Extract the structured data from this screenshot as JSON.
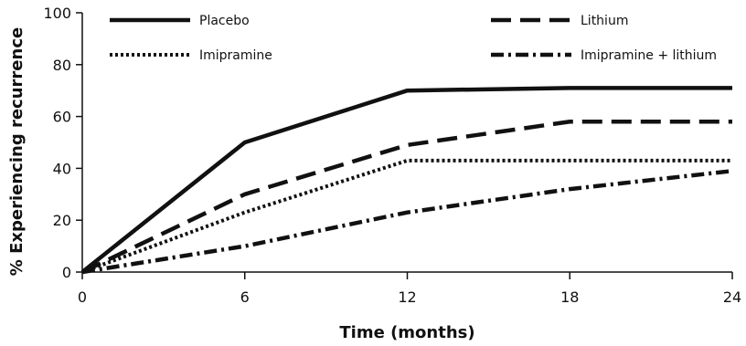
{
  "chart_data": {
    "type": "line",
    "title": "",
    "xlabel": "Time (months)",
    "ylabel": "% Experiencing recurrence",
    "x": [
      0,
      6,
      12,
      18,
      24
    ],
    "xlim": [
      0,
      24
    ],
    "ylim": [
      0,
      100
    ],
    "xticks": [
      "0",
      "6",
      "12",
      "18",
      "24"
    ],
    "yticks": [
      "0",
      "20",
      "40",
      "60",
      "80",
      "100"
    ],
    "grid": false,
    "legend_position": "top",
    "series": [
      {
        "name": "Placebo",
        "values": [
          0,
          50,
          70,
          71,
          71
        ],
        "style": "solid",
        "color": "#111111"
      },
      {
        "name": "Lithium",
        "values": [
          0,
          30,
          49,
          58,
          58
        ],
        "style": "dashed",
        "color": "#111111"
      },
      {
        "name": "Imipramine",
        "values": [
          0,
          23,
          43,
          43,
          43
        ],
        "style": "dotted",
        "color": "#111111"
      },
      {
        "name": "Imipramine + lithium",
        "values": [
          0,
          10,
          23,
          32,
          39
        ],
        "style": "dashdot",
        "color": "#111111"
      }
    ]
  }
}
